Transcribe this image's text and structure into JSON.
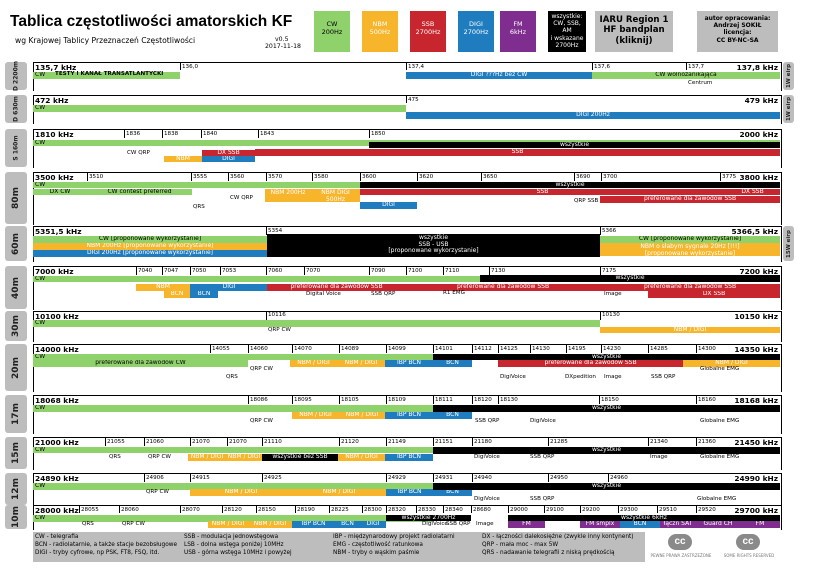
{
  "header": {
    "title": "Tablica częstotliwości amatorskich KF",
    "subtitle": "wg Krajowej Tablicy Przeznaczeń Częstotliwości",
    "version": "v0.5",
    "date": "2017-11-18",
    "iaru": "IARU Region 1\nHF bandplan\n(kliknij)",
    "author": "autor opracowania:\nAndrzej SOKIŁ\nlicencja:\nCC BY-NC-SA"
  },
  "legend_boxes": [
    {
      "id": "cw",
      "label": "CW\n200Hz",
      "color": "#8fd16b",
      "text": "#000"
    },
    {
      "id": "nbm",
      "label": "NBM\n500Hz",
      "color": "#f7b52b",
      "text": "#fff"
    },
    {
      "id": "ssb",
      "label": "SSB\n2700Hz",
      "color": "#c8262f",
      "text": "#fff"
    },
    {
      "id": "digi",
      "label": "DIGI\n2700Hz",
      "color": "#1f7cbf",
      "text": "#fff"
    },
    {
      "id": "fm",
      "label": "FM\n6kHz",
      "color": "#7f2e8f",
      "text": "#fff"
    },
    {
      "id": "all",
      "label": "wszystkie:\nCW, SSB,\nAM\ni wskazane\n2700Hz",
      "color": "#000",
      "text": "#fff"
    }
  ],
  "colors": {
    "cw": "#8fd16b",
    "nbm": "#f7b52b",
    "ssb": "#c8262f",
    "digi": "#1f7cbf",
    "fm": "#7f2e8f",
    "all": "#000",
    "side": "#bdbdbd"
  },
  "chart_data": {
    "type": "table",
    "title": "Tablica częstotliwości amatorskich KF",
    "unit": "kHz",
    "bands": [
      {
        "name": "D 2200m",
        "start": "135,7 kHz",
        "end": "137,8 kHz",
        "right_note": "1W eirp",
        "freq_labels": [
          "136,0",
          "137,4",
          "137,6",
          "137,7"
        ],
        "notes": [
          "TESTY I KANAŁ TRANSATLANTYCKI",
          "Centrum"
        ],
        "segments": [
          {
            "text": "CW",
            "mode": "cw"
          },
          {
            "text": "DIGI ???Hz bez CW",
            "mode": "digi"
          },
          {
            "text": "CW wolnozanikająca",
            "mode": "cw"
          }
        ]
      },
      {
        "name": "D 630m",
        "start": "472 kHz",
        "end": "479 kHz",
        "right_note": "1W eirp",
        "freq_labels": [
          "475"
        ],
        "segments": [
          {
            "text": "CW",
            "mode": "cw"
          },
          {
            "text": "DIGI 200Hz",
            "mode": "digi"
          }
        ]
      },
      {
        "name": "S 160m",
        "start": "1810 kHz",
        "end": "2000 kHz",
        "freq_labels": [
          "1836",
          "1838",
          "1840",
          "1843",
          "1850"
        ],
        "notes": [
          "CW QRP"
        ],
        "segments": [
          {
            "text": "CW",
            "mode": "cw"
          },
          {
            "text": "wszystkie",
            "mode": "all"
          },
          {
            "text": "NBM",
            "mode": "nbm"
          },
          {
            "text": "DIGI",
            "mode": "digi"
          },
          {
            "text": "DX SSB",
            "mode": "ssb"
          },
          {
            "text": "SSB",
            "mode": "ssb"
          }
        ]
      },
      {
        "name": "80m",
        "start": "3500 kHz",
        "end": "3800 kHz",
        "freq_labels": [
          "3510",
          "3555",
          "3560",
          "3570",
          "3580",
          "3600",
          "3620",
          "3650",
          "3690",
          "3700",
          "3775"
        ],
        "notes": [
          "QRS",
          "CW QRP",
          "QRP SSB"
        ],
        "segments": [
          {
            "text": "CW",
            "mode": "cw"
          },
          {
            "text": "DX CW",
            "mode": "cw"
          },
          {
            "text": "CW contest preferred",
            "mode": "cw"
          },
          {
            "text": "wszystkie",
            "mode": "all"
          },
          {
            "text": "NBM 200Hz",
            "mode": "nbm"
          },
          {
            "text": "NBM DIGI 500Hz",
            "mode": "nbm"
          },
          {
            "text": "DIGI",
            "mode": "digi"
          },
          {
            "text": "SSB",
            "mode": "ssb"
          },
          {
            "text": "DX SSB",
            "mode": "ssb"
          },
          {
            "text": "preferowane dla zawodów SSB",
            "mode": "ssb"
          }
        ]
      },
      {
        "name": "60m",
        "start": "5351,5 kHz",
        "end": "5366,5 kHz",
        "right_note": "15W eirp",
        "freq_labels": [
          "5354",
          "5366"
        ],
        "segments": [
          {
            "text": "CW [proponowane wykorzystanie]",
            "mode": "cw"
          },
          {
            "text": "NBM 200Hz [proponowane wykorzystanie]",
            "mode": "nbm"
          },
          {
            "text": "DIGI 200Hz [proponowane wykorzystanie]",
            "mode": "digi"
          },
          {
            "text": "wszystkie\nSSB - USB\n[proponowane wykorzystanie]",
            "mode": "all"
          },
          {
            "text": "CW [proponowane wykorzystanie]",
            "mode": "cw"
          },
          {
            "text": "NBM o słabym sygnale 20Hz [!!!]\n[proponowane wykorzystanie]",
            "mode": "nbm"
          }
        ]
      },
      {
        "name": "40m",
        "start": "7000 kHz",
        "end": "7200 kHz",
        "freq_labels": [
          "7040",
          "7047",
          "7050",
          "7053",
          "7060",
          "7070",
          "7090",
          "7100",
          "7110",
          "7130",
          "7175"
        ],
        "notes": [
          "Digital Voice",
          "SSB QRP",
          "R1 EMG",
          "Image"
        ],
        "segments": [
          {
            "text": "CW",
            "mode": "cw"
          },
          {
            "text": "wszystkie",
            "mode": "all"
          },
          {
            "text": "NBM",
            "mode": "nbm"
          },
          {
            "text": "BCN",
            "mode": "nbm"
          },
          {
            "text": "BCN",
            "mode": "digi"
          },
          {
            "text": "DIGI",
            "mode": "digi"
          },
          {
            "text": "preferowane dla zawodów SSB",
            "mode": "ssb"
          },
          {
            "text": "preferowane dla zawodów SSB",
            "mode": "ssb"
          },
          {
            "text": "preferowane dla zawodów SSB",
            "mode": "ssb"
          },
          {
            "text": "DX SSB",
            "mode": "ssb"
          }
        ]
      },
      {
        "name": "30m",
        "start": "10100 kHz",
        "end": "10150 kHz",
        "freq_labels": [
          "10116",
          "10130"
        ],
        "notes": [
          "QRP CW"
        ],
        "segments": [
          {
            "text": "CW",
            "mode": "cw"
          },
          {
            "text": "NBM / DIGI",
            "mode": "nbm"
          }
        ]
      },
      {
        "name": "20m",
        "start": "14000 kHz",
        "end": "14350 kHz",
        "freq_labels": [
          "14055",
          "14060",
          "14070",
          "14089",
          "14099",
          "14101",
          "14112",
          "14125",
          "14130",
          "14195",
          "14230",
          "14285",
          "14300"
        ],
        "notes": [
          "QRS",
          "QRP CW",
          "DigiVoice",
          "DXpedition",
          "Image",
          "SSB QRP",
          "Globalne EMG"
        ],
        "segments": [
          {
            "text": "CW",
            "mode": "cw"
          },
          {
            "text": "preferowane dla zawodów CW",
            "mode": "cw"
          },
          {
            "text": "NBM / DIGI",
            "mode": "nbm"
          },
          {
            "text": "NBM / DIGI",
            "mode": "nbm"
          },
          {
            "text": "IBP BCN",
            "mode": "digi"
          },
          {
            "text": "BCN",
            "mode": "digi"
          },
          {
            "text": "wszystkie",
            "mode": "all"
          },
          {
            "text": "preferowane dla zawodów SSB",
            "mode": "ssb"
          },
          {
            "text": "NBM / DIGI",
            "mode": "nbm"
          }
        ]
      },
      {
        "name": "17m",
        "start": "18068 kHz",
        "end": "18168 kHz",
        "freq_labels": [
          "18086",
          "18095",
          "18105",
          "18109",
          "18111",
          "18120",
          "18130",
          "18150",
          "18160"
        ],
        "notes": [
          "QRP CW",
          "SSB QRP",
          "DigiVoice",
          "Globalne EMG"
        ],
        "segments": [
          {
            "text": "CW",
            "mode": "cw"
          },
          {
            "text": "NBM / DIGI",
            "mode": "nbm"
          },
          {
            "text": "NBM / DIGI",
            "mode": "nbm"
          },
          {
            "text": "IBP BCN",
            "mode": "digi"
          },
          {
            "text": "BCN",
            "mode": "digi"
          },
          {
            "text": "wszystkie",
            "mode": "all"
          }
        ]
      },
      {
        "name": "15m",
        "start": "21000 kHz",
        "end": "21450 kHz",
        "freq_labels": [
          "21055",
          "21060",
          "21070",
          "21070",
          "21110",
          "21120",
          "21149",
          "21151",
          "21180",
          "21285",
          "21340",
          "21360"
        ],
        "notes": [
          "QRS",
          "QRP CW",
          "DigiVoice",
          "SSB QRP",
          "Image",
          "Globalne EMG"
        ],
        "segments": [
          {
            "text": "CW",
            "mode": "cw"
          },
          {
            "text": "NBM / DIGI",
            "mode": "nbm"
          },
          {
            "text": "NBM / DIGI",
            "mode": "nbm"
          },
          {
            "text": "wszystkie bez SSB",
            "mode": "all"
          },
          {
            "text": "NBM / DIGI",
            "mode": "nbm"
          },
          {
            "text": "IBP BCN",
            "mode": "digi"
          },
          {
            "text": "wszystkie",
            "mode": "all"
          }
        ]
      },
      {
        "name": "12m",
        "start": "24890 kHz",
        "end": "24990 kHz",
        "freq_labels": [
          "24906",
          "24915",
          "24925",
          "24929",
          "24931",
          "24940",
          "24950",
          "24960"
        ],
        "notes": [
          "QRP CW",
          "DigiVoice",
          "SSB QRP",
          "Globalne EMG"
        ],
        "segments": [
          {
            "text": "CW",
            "mode": "cw"
          },
          {
            "text": "NBM / DIGI",
            "mode": "nbm"
          },
          {
            "text": "NBM / DIGI",
            "mode": "nbm"
          },
          {
            "text": "IBP BCN",
            "mode": "digi"
          },
          {
            "text": "BCN",
            "mode": "digi"
          },
          {
            "text": "wszystkie",
            "mode": "all"
          }
        ]
      },
      {
        "name": "10m",
        "start": "28000 kHz",
        "end": "29700 kHz",
        "freq_labels": [
          "28055",
          "28060",
          "28070",
          "28120",
          "28150",
          "28190",
          "28225",
          "28300",
          "28320",
          "28330",
          "28340",
          "28680",
          "29000",
          "29100",
          "29200",
          "29300",
          "29510",
          "29520"
        ],
        "notes": [
          "QRS",
          "QRP CW",
          "DigiVoice",
          "SSB QRP",
          "Image"
        ],
        "segments": [
          {
            "text": "CW",
            "mode": "cw"
          },
          {
            "text": "NBM / DIGI",
            "mode": "nbm"
          },
          {
            "text": "NBM / DIGI",
            "mode": "nbm"
          },
          {
            "text": "IBP BCN",
            "mode": "digi"
          },
          {
            "text": "BCN",
            "mode": "digi"
          },
          {
            "text": "DIGI",
            "mode": "digi"
          },
          {
            "text": "wszystkie 2700Hz",
            "mode": "all"
          },
          {
            "text": "wszystkie 6kHz",
            "mode": "all"
          },
          {
            "text": "FM",
            "mode": "fm"
          },
          {
            "text": "FM smplx",
            "mode": "fm"
          },
          {
            "text": "BCN",
            "mode": "digi"
          },
          {
            "text": "łączn SAT",
            "mode": "fm"
          },
          {
            "text": "Guard CH",
            "mode": "fm"
          },
          {
            "text": "FM",
            "mode": "fm"
          }
        ]
      }
    ]
  },
  "footer": {
    "col1": [
      "CW - telegrafia",
      "BCN - radiolatarnie, a także stacje bezobsługowe",
      "DIGI - tryby cyfrowe, np PSK, FT8, FSQ, itd."
    ],
    "col2": [
      "SSB - modulacja jednowstęgowa",
      "LSB - dolna wstęga poniżej 10MHz",
      "USB - górna wstęga 10MHz i powyżej"
    ],
    "col3": [
      "IBP - międzynarodowy projekt radiolatarni",
      "EMG - częstotliwość ratunkowa",
      "NBM - tryby o wąskim paśmie"
    ],
    "col4": [
      "DX - łączności dalekosiężne (zwykle inny kontynent)",
      "QRP - mała moc - max 5W",
      "QRS - nadawanie telegrafii z niską prędkością"
    ],
    "badge1": "cc",
    "badge1_caption": "PEWNE PRAWA ZASTRZEŻONE",
    "badge2": "cc",
    "badge2_caption": "SOME RIGHTS RESERVED"
  }
}
